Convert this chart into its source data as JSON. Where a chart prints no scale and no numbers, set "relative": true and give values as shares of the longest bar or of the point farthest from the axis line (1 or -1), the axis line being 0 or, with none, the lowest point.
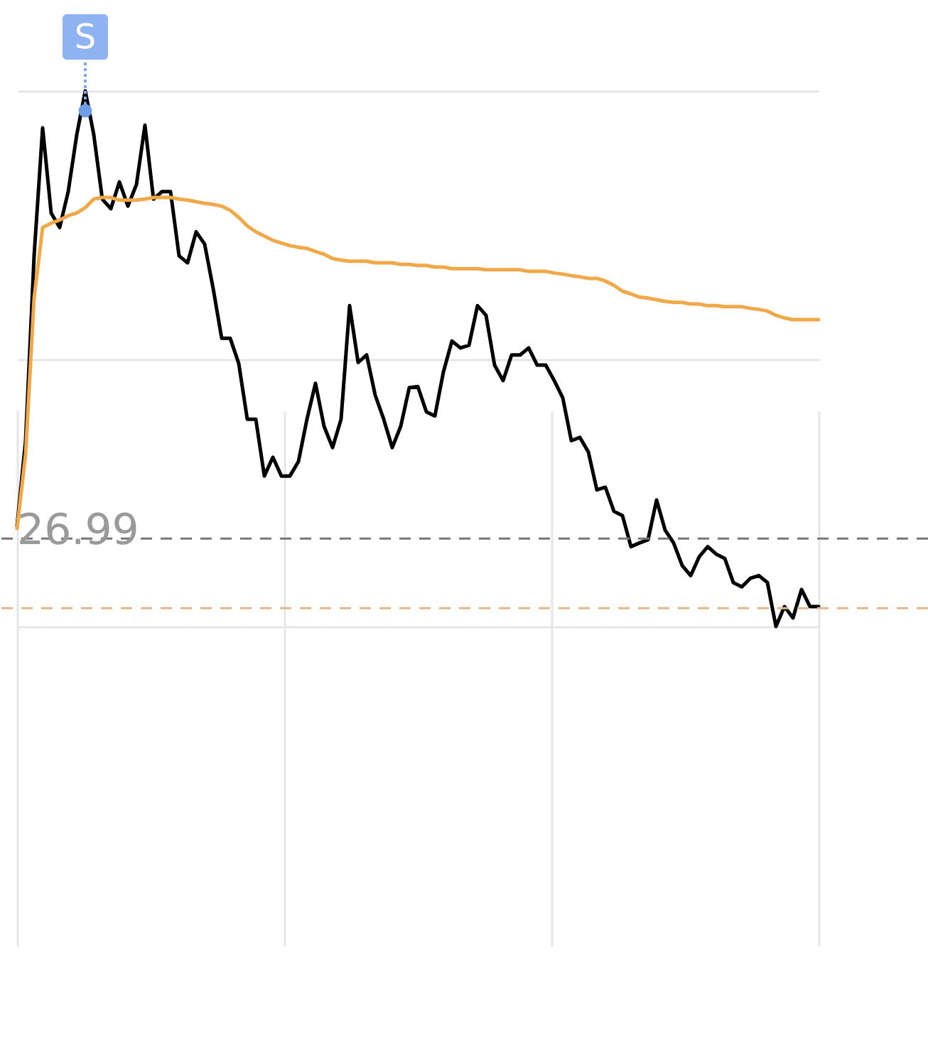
{
  "chart_data": {
    "type": "line",
    "relative": true,
    "grid": true,
    "legend": false,
    "line_style": "solid",
    "categories": [
      null,
      null,
      null,
      null,
      null,
      null,
      null,
      null,
      null,
      null,
      null,
      null,
      null,
      null,
      null,
      null,
      null,
      null,
      null,
      null,
      null,
      null,
      null,
      null,
      null,
      null,
      null,
      null,
      null,
      null,
      null,
      null,
      null,
      null,
      null,
      null,
      null,
      null,
      null,
      null,
      null,
      null,
      null,
      null,
      null,
      null,
      null,
      null,
      null,
      null,
      null,
      null,
      null,
      null,
      null,
      null,
      null,
      null,
      null,
      null,
      null,
      null,
      null,
      null,
      null,
      null,
      null,
      null,
      null,
      null,
      null,
      null,
      null,
      null,
      null,
      null,
      null,
      null,
      null,
      null,
      null,
      null,
      null,
      null,
      null,
      null,
      null,
      null,
      null,
      null,
      null,
      null,
      null,
      null,
      null
    ],
    "series": [
      {
        "color": "#000000",
        "values": [
          0.188,
          0.347,
          0.692,
          0.931,
          0.772,
          0.745,
          0.812,
          0.918,
          1.0,
          0.918,
          0.798,
          0.78,
          0.83,
          0.785,
          0.825,
          0.936,
          0.798,
          0.812,
          0.812,
          0.692,
          0.679,
          0.737,
          0.714,
          0.631,
          0.538,
          0.538,
          0.491,
          0.387,
          0.387,
          0.281,
          0.316,
          0.281,
          0.281,
          0.308,
          0.387,
          0.454,
          0.374,
          0.334,
          0.387,
          0.599,
          0.493,
          0.507,
          0.432,
          0.387,
          0.334,
          0.374,
          0.446,
          0.448,
          0.401,
          0.393,
          0.475,
          0.533,
          0.52,
          0.525,
          0.599,
          0.581,
          0.488,
          0.459,
          0.507,
          0.507,
          0.52,
          0.488,
          0.488,
          0.459,
          0.427,
          0.347,
          0.353,
          0.326,
          0.255,
          0.26,
          0.215,
          0.207,
          0.149,
          0.156,
          0.162,
          0.236,
          0.18,
          0.156,
          0.114,
          0.095,
          0.13,
          0.149,
          0.135,
          0.127,
          0.082,
          0.074,
          0.09,
          0.095,
          0.082,
          0.0,
          0.037,
          0.016,
          0.069,
          0.037,
          0.037
        ]
      },
      {
        "color": "#f0a848",
        "values": [
          0.183,
          0.321,
          0.613,
          0.745,
          0.753,
          0.759,
          0.767,
          0.772,
          0.782,
          0.798,
          0.801,
          0.801,
          0.796,
          0.796,
          0.796,
          0.798,
          0.801,
          0.801,
          0.801,
          0.798,
          0.796,
          0.793,
          0.79,
          0.788,
          0.785,
          0.777,
          0.764,
          0.748,
          0.737,
          0.729,
          0.721,
          0.716,
          0.711,
          0.708,
          0.706,
          0.7,
          0.695,
          0.687,
          0.684,
          0.682,
          0.682,
          0.682,
          0.679,
          0.679,
          0.679,
          0.676,
          0.676,
          0.674,
          0.674,
          0.671,
          0.671,
          0.668,
          0.668,
          0.668,
          0.668,
          0.666,
          0.666,
          0.666,
          0.666,
          0.666,
          0.663,
          0.663,
          0.663,
          0.66,
          0.658,
          0.655,
          0.653,
          0.65,
          0.65,
          0.645,
          0.637,
          0.626,
          0.621,
          0.615,
          0.613,
          0.61,
          0.607,
          0.605,
          0.605,
          0.602,
          0.602,
          0.599,
          0.599,
          0.597,
          0.597,
          0.597,
          0.594,
          0.592,
          0.589,
          0.581,
          0.576,
          0.573,
          0.573,
          0.573,
          0.573
        ]
      }
    ],
    "ref_lines": [
      {
        "axis": "y",
        "value": 0.164,
        "color": "#777777",
        "line_style": "dashed"
      },
      {
        "axis": "y",
        "value": 0.034,
        "color": "#e0b98a",
        "line_style": "dashed"
      }
    ],
    "annotations": [
      {
        "text": "S",
        "y": 0.963
      },
      "26.99"
    ]
  }
}
